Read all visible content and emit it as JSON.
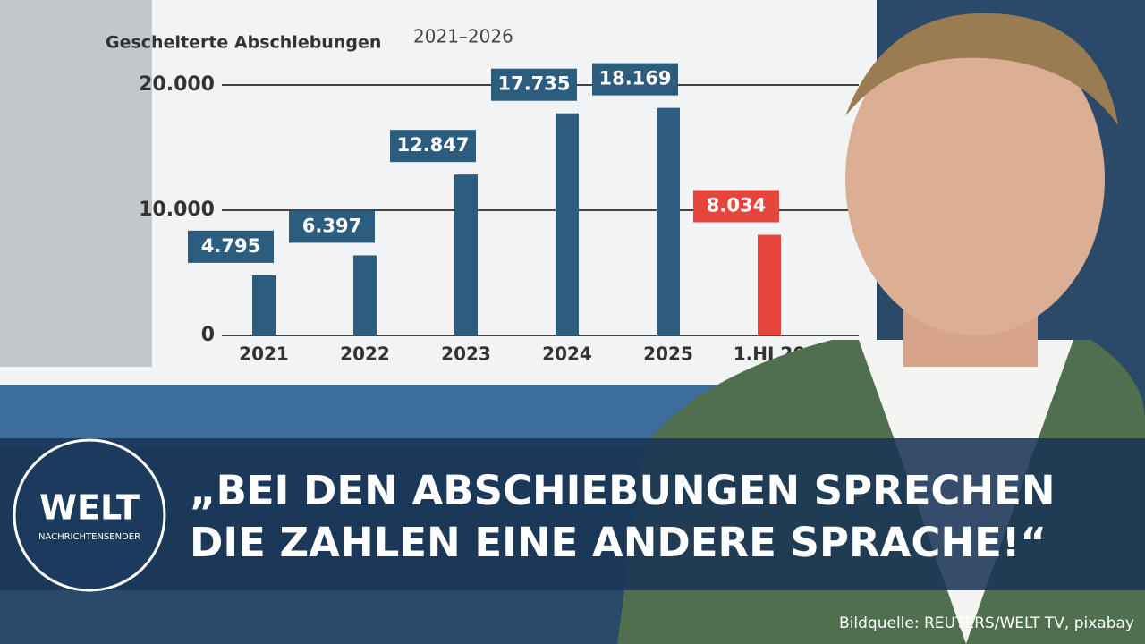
{
  "chart_data": {
    "type": "bar",
    "title": "Gescheiterte Abschiebungen",
    "subtitle": "2021–2026",
    "categories": [
      "2021",
      "2022",
      "2023",
      "2024",
      "2025",
      "1.HJ 20"
    ],
    "values": [
      4795,
      6397,
      12847,
      17735,
      18169,
      8034
    ],
    "value_labels": [
      "4.795",
      "6.397",
      "12.847",
      "17.735",
      "18.169",
      "8.034"
    ],
    "colors": [
      "#2c5d7f",
      "#2c5d7f",
      "#2c5d7f",
      "#2c5d7f",
      "#2c5d7f",
      "#e5453a"
    ],
    "ylim": [
      0,
      20000
    ],
    "yticks": [
      0,
      {
        "value": 10000,
        "label": "10.000"
      },
      {
        "value": 20000,
        "label": "20.000"
      }
    ],
    "grid": true
  },
  "logo": {
    "name": "WELT",
    "tagline": "NACHRICHTENSENDER"
  },
  "headline": [
    "„BEI DEN ABSCHIEBUNGEN SPRECHEN",
    "DIE ZAHLEN EINE ANDERE SPRACHE!“"
  ],
  "credit": "Bildquelle: REUTERS/WELT TV, pixabay"
}
